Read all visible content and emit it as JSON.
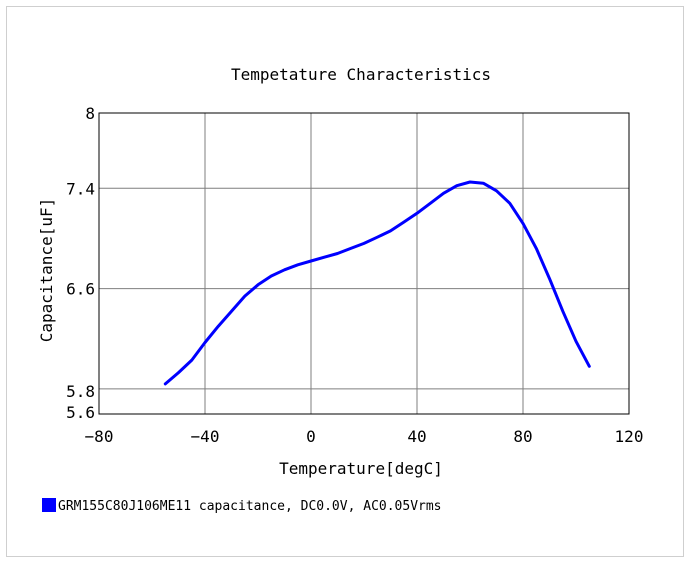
{
  "chart_data": {
    "type": "line",
    "title": "Tempetature  Characteristics",
    "xlabel": "Temperature[degC]",
    "ylabel": "Capacitance[uF]",
    "xlim": [
      -80,
      120
    ],
    "ylim": [
      5.6,
      8
    ],
    "x_ticks": [
      -80,
      -40,
      0,
      40,
      80,
      120
    ],
    "y_ticks": [
      5.6,
      5.8,
      6.6,
      7.4,
      8
    ],
    "x_tick_labels": [
      "−80",
      "−40",
      "0",
      "40",
      "80",
      "120"
    ],
    "y_tick_labels": [
      "5.6",
      "5.8",
      "6.6",
      "7.4",
      "8"
    ],
    "grid": true,
    "legend_position": "bottom-left",
    "series": [
      {
        "name": "GRM155C80J106ME11 capacitance, DC0.0V, AC0.05Vrms",
        "color": "#0000ff",
        "x": [
          -55,
          -50,
          -45,
          -40,
          -35,
          -30,
          -25,
          -20,
          -15,
          -10,
          -5,
          0,
          5,
          10,
          15,
          20,
          25,
          30,
          35,
          40,
          45,
          50,
          55,
          60,
          65,
          70,
          75,
          80,
          85,
          90,
          95,
          100,
          105
        ],
        "y": [
          5.84,
          5.93,
          6.03,
          6.17,
          6.3,
          6.42,
          6.54,
          6.63,
          6.7,
          6.75,
          6.79,
          6.82,
          6.85,
          6.88,
          6.92,
          6.96,
          7.01,
          7.06,
          7.13,
          7.2,
          7.28,
          7.36,
          7.42,
          7.45,
          7.44,
          7.38,
          7.28,
          7.12,
          6.92,
          6.68,
          6.42,
          6.18,
          5.98
        ]
      }
    ]
  }
}
